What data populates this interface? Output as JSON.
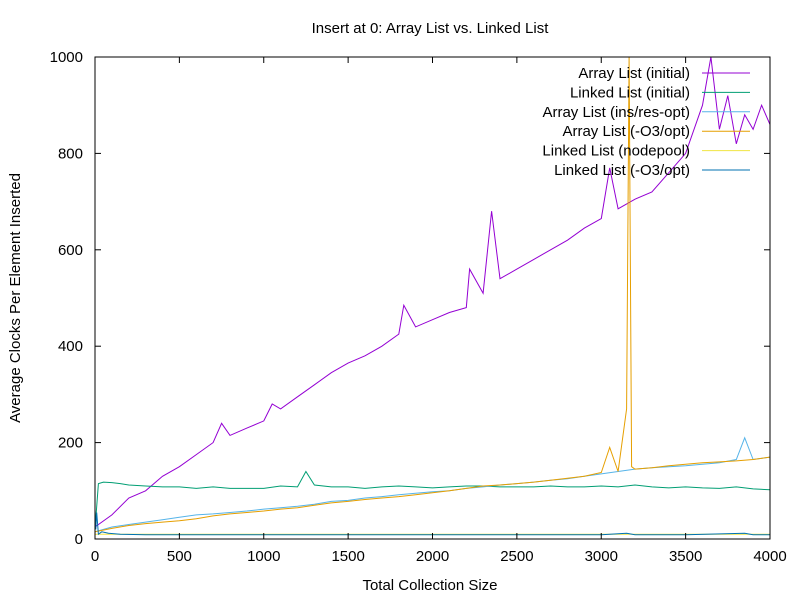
{
  "chart_data": {
    "type": "line",
    "title": "Insert at 0:  Array List vs. Linked List",
    "xlabel": "Total Collection Size",
    "ylabel": "Average Clocks Per Element Inserted",
    "xlim": [
      0,
      4000
    ],
    "ylim": [
      0,
      1000
    ],
    "xticks": [
      "0",
      "500",
      "1000",
      "1500",
      "2000",
      "2500",
      "3000",
      "3500",
      "4000"
    ],
    "yticks": [
      "0",
      "200",
      "400",
      "600",
      "800",
      "1000"
    ],
    "grid": false,
    "legend_position": "top-right",
    "series": [
      {
        "name": "Array List (initial)",
        "color": "#9400d3",
        "x": [
          0,
          100,
          200,
          300,
          400,
          500,
          600,
          700,
          750,
          800,
          900,
          1000,
          1050,
          1100,
          1200,
          1300,
          1400,
          1500,
          1600,
          1700,
          1800,
          1830,
          1900,
          2000,
          2100,
          2200,
          2220,
          2300,
          2350,
          2400,
          2500,
          2600,
          2700,
          2800,
          2900,
          3000,
          3050,
          3100,
          3200,
          3300,
          3400,
          3500,
          3600,
          3650,
          3700,
          3750,
          3800,
          3850,
          3900,
          3950,
          4000
        ],
        "y": [
          25,
          50,
          85,
          100,
          130,
          150,
          175,
          200,
          240,
          215,
          230,
          245,
          280,
          270,
          295,
          320,
          345,
          365,
          380,
          400,
          425,
          485,
          440,
          455,
          470,
          480,
          560,
          510,
          680,
          540,
          560,
          580,
          600,
          620,
          645,
          665,
          770,
          685,
          705,
          720,
          760,
          800,
          900,
          1000,
          850,
          920,
          820,
          880,
          850,
          900,
          860
        ]
      },
      {
        "name": "Linked List (initial)",
        "color": "#009e73",
        "x": [
          0,
          20,
          50,
          100,
          150,
          200,
          300,
          400,
          500,
          600,
          700,
          800,
          900,
          1000,
          1100,
          1200,
          1250,
          1300,
          1400,
          1500,
          1600,
          1700,
          1800,
          1900,
          2000,
          2100,
          2200,
          2300,
          2400,
          2500,
          2600,
          2700,
          2800,
          2900,
          3000,
          3100,
          3200,
          3300,
          3400,
          3500,
          3600,
          3700,
          3800,
          3900,
          4000
        ],
        "y": [
          20,
          115,
          118,
          117,
          115,
          112,
          110,
          108,
          108,
          105,
          108,
          105,
          105,
          105,
          110,
          108,
          140,
          112,
          108,
          108,
          105,
          108,
          110,
          108,
          106,
          108,
          110,
          110,
          108,
          108,
          108,
          110,
          108,
          108,
          110,
          108,
          112,
          108,
          106,
          108,
          106,
          105,
          108,
          104,
          102
        ]
      },
      {
        "name": "Array List (ins/res-opt)",
        "color": "#56b4e9",
        "x": [
          0,
          100,
          200,
          300,
          400,
          500,
          600,
          700,
          800,
          900,
          1000,
          1100,
          1200,
          1300,
          1400,
          1500,
          1600,
          1700,
          1800,
          1900,
          2000,
          2100,
          2200,
          2300,
          2400,
          2500,
          2600,
          2700,
          2800,
          2900,
          3000,
          3100,
          3200,
          3300,
          3400,
          3500,
          3600,
          3700,
          3800,
          3850,
          3900,
          4000
        ],
        "y": [
          15,
          25,
          30,
          35,
          40,
          45,
          50,
          52,
          55,
          58,
          62,
          65,
          68,
          72,
          78,
          80,
          85,
          88,
          92,
          95,
          98,
          100,
          105,
          108,
          112,
          115,
          118,
          122,
          125,
          130,
          135,
          140,
          145,
          148,
          150,
          152,
          155,
          158,
          165,
          210,
          165,
          170
        ]
      },
      {
        "name": "Array List (-O3/opt)",
        "color": "#e69f00",
        "x": [
          0,
          100,
          200,
          300,
          400,
          500,
          600,
          700,
          800,
          900,
          1000,
          1100,
          1200,
          1300,
          1400,
          1500,
          1600,
          1700,
          1800,
          1900,
          2000,
          2100,
          2200,
          2300,
          2400,
          2500,
          2600,
          2700,
          2800,
          2900,
          3000,
          3050,
          3100,
          3150,
          3165,
          3180,
          3200,
          3300,
          3400,
          3500,
          3600,
          3700,
          3800,
          3900,
          4000
        ],
        "y": [
          15,
          22,
          28,
          32,
          35,
          38,
          42,
          48,
          52,
          55,
          58,
          62,
          65,
          70,
          75,
          78,
          82,
          85,
          88,
          92,
          96,
          100,
          105,
          110,
          112,
          115,
          118,
          122,
          126,
          130,
          138,
          190,
          140,
          270,
          1000,
          150,
          145,
          148,
          152,
          155,
          158,
          160,
          162,
          165,
          170
        ]
      },
      {
        "name": "Linked List (nodepool)",
        "color": "#f0e442",
        "x": [
          0,
          500,
          1000,
          1500,
          2000,
          2500,
          3000,
          3500,
          4000
        ],
        "y": [
          10,
          10,
          10,
          10,
          10,
          10,
          10,
          10,
          10
        ]
      },
      {
        "name": "Linked List (-O3/opt)",
        "color": "#0072b2",
        "x": [
          0,
          5,
          10,
          20,
          40,
          80,
          150,
          300,
          500,
          1000,
          1500,
          2000,
          2500,
          3000,
          3150,
          3200,
          3500,
          3850,
          3900,
          4000
        ],
        "y": [
          60,
          20,
          55,
          10,
          15,
          12,
          10,
          9,
          9,
          9,
          9,
          9,
          9,
          9,
          12,
          9,
          9,
          12,
          9,
          9
        ]
      }
    ]
  }
}
